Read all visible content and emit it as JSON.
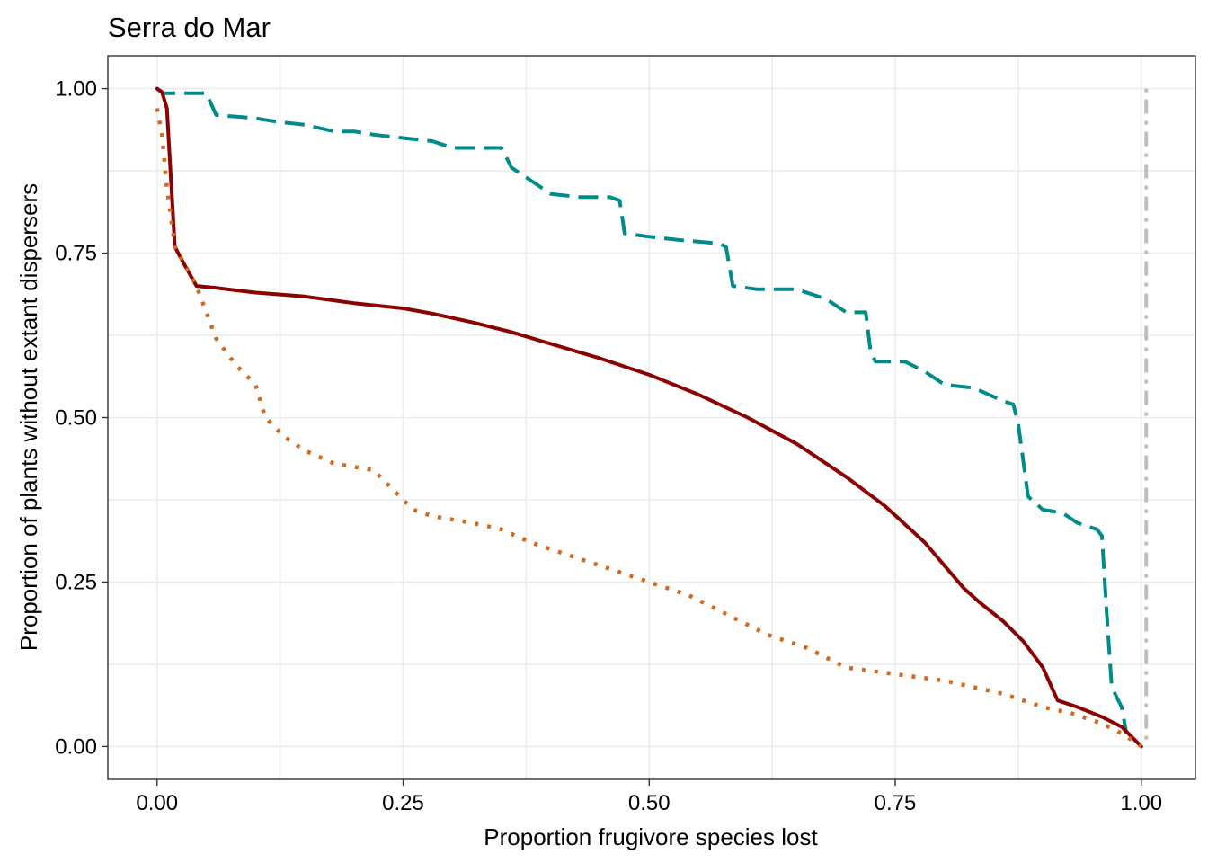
{
  "chart_data": {
    "type": "line",
    "title": "Serra do Mar",
    "xlabel": "Proportion frugivore species lost",
    "ylabel": "Proportion of plants without extant dispersers",
    "xlim": [
      -0.05,
      1.055
    ],
    "ylim": [
      -0.05,
      1.05
    ],
    "xticks": [
      0,
      0.25,
      0.5,
      0.75,
      1
    ],
    "xtick_labels": [
      "0.00",
      "0.25",
      "0.50",
      "0.75",
      "1.00"
    ],
    "yticks": [
      0,
      0.25,
      0.5,
      0.75,
      1
    ],
    "ytick_labels": [
      "0.00",
      "0.25",
      "0.50",
      "0.75",
      "1.00"
    ],
    "grid": true,
    "legend": "none",
    "series": [
      {
        "style": "dashed",
        "color": "#008b8b",
        "x": [
          0,
          0.006,
          0.05,
          0.06,
          0.1,
          0.12,
          0.15,
          0.18,
          0.2,
          0.22,
          0.25,
          0.28,
          0.3,
          0.35,
          0.36,
          0.38,
          0.4,
          0.43,
          0.46,
          0.47,
          0.475,
          0.5,
          0.53,
          0.57,
          0.578,
          0.585,
          0.61,
          0.65,
          0.68,
          0.7,
          0.72,
          0.725,
          0.73,
          0.76,
          0.78,
          0.8,
          0.83,
          0.86,
          0.87,
          0.875,
          0.885,
          0.9,
          0.92,
          0.935,
          0.955,
          0.96,
          0.965,
          0.97,
          0.98,
          0.985
        ],
        "y": [
          1.0,
          0.993,
          0.993,
          0.96,
          0.955,
          0.95,
          0.945,
          0.935,
          0.935,
          0.93,
          0.925,
          0.92,
          0.91,
          0.91,
          0.88,
          0.86,
          0.84,
          0.835,
          0.835,
          0.83,
          0.78,
          0.775,
          0.77,
          0.765,
          0.76,
          0.7,
          0.695,
          0.695,
          0.68,
          0.66,
          0.66,
          0.6,
          0.585,
          0.585,
          0.57,
          0.55,
          0.545,
          0.525,
          0.52,
          0.49,
          0.38,
          0.36,
          0.355,
          0.34,
          0.33,
          0.32,
          0.2,
          0.09,
          0.06,
          0.02
        ]
      },
      {
        "style": "solid",
        "color": "#8b0000",
        "x": [
          0,
          0.005,
          0.01,
          0.018,
          0.025,
          0.04,
          0.06,
          0.1,
          0.15,
          0.2,
          0.25,
          0.28,
          0.32,
          0.36,
          0.4,
          0.45,
          0.5,
          0.55,
          0.6,
          0.65,
          0.7,
          0.74,
          0.78,
          0.8,
          0.82,
          0.835,
          0.86,
          0.88,
          0.9,
          0.915,
          0.935,
          0.96,
          0.98,
          1.0
        ],
        "y": [
          1.0,
          0.995,
          0.97,
          0.76,
          0.74,
          0.7,
          0.697,
          0.69,
          0.684,
          0.674,
          0.666,
          0.658,
          0.645,
          0.63,
          0.612,
          0.59,
          0.565,
          0.535,
          0.5,
          0.46,
          0.41,
          0.365,
          0.31,
          0.275,
          0.24,
          0.22,
          0.19,
          0.16,
          0.12,
          0.07,
          0.06,
          0.045,
          0.03,
          0.0
        ]
      },
      {
        "style": "dotted",
        "color": "#d2691e",
        "x": [
          0,
          0.005,
          0.01,
          0.018,
          0.04,
          0.06,
          0.08,
          0.1,
          0.11,
          0.13,
          0.15,
          0.18,
          0.22,
          0.24,
          0.26,
          0.28,
          0.32,
          0.35,
          0.38,
          0.42,
          0.46,
          0.5,
          0.54,
          0.58,
          0.62,
          0.66,
          0.7,
          0.75,
          0.8,
          0.83,
          0.86,
          0.9,
          0.93,
          0.96,
          0.98,
          1.0
        ],
        "y": [
          0.97,
          0.93,
          0.85,
          0.76,
          0.7,
          0.62,
          0.58,
          0.55,
          0.5,
          0.47,
          0.45,
          0.43,
          0.42,
          0.39,
          0.36,
          0.35,
          0.34,
          0.33,
          0.31,
          0.29,
          0.27,
          0.25,
          0.23,
          0.2,
          0.17,
          0.15,
          0.12,
          0.11,
          0.1,
          0.09,
          0.08,
          0.06,
          0.05,
          0.035,
          0.02,
          0.0
        ]
      },
      {
        "style": "dashdot",
        "color": "#bebebe",
        "x": [
          1.005,
          1.005
        ],
        "y": [
          1.0,
          0.0
        ]
      }
    ]
  }
}
